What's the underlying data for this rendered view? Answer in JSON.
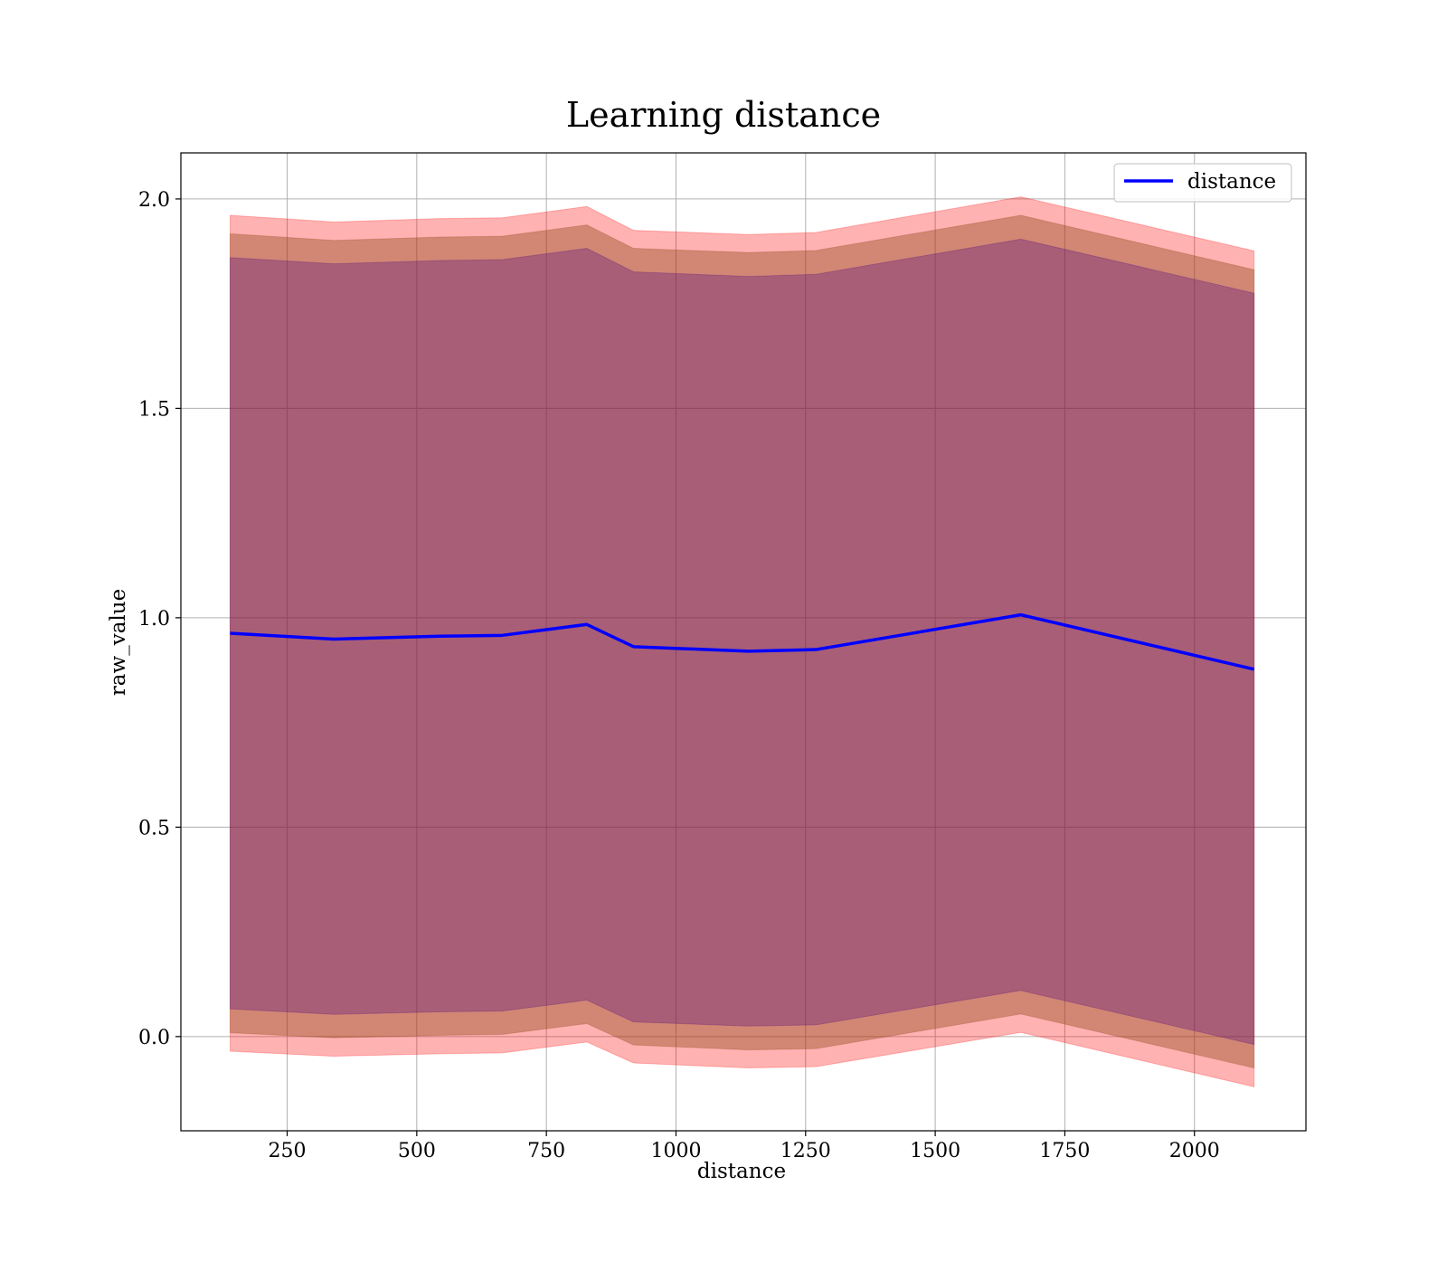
{
  "chart_data": {
    "type": "area",
    "title": "Learning distance",
    "xlabel": "distance",
    "ylabel": "raw_value",
    "xlim": [
      45,
      2215
    ],
    "ylim": [
      -0.225,
      2.11
    ],
    "xticks": [
      250,
      500,
      750,
      1000,
      1250,
      1500,
      1750,
      2000
    ],
    "yticks": [
      0.0,
      0.5,
      1.0,
      1.5,
      2.0
    ],
    "xtick_labels": [
      "250",
      "500",
      "750",
      "1000",
      "1250",
      "1500",
      "1750",
      "2000"
    ],
    "ytick_labels": [
      "0.0",
      "0.5",
      "1.0",
      "1.5",
      "2.0"
    ],
    "grid": true,
    "legend_position": "top-right",
    "x": [
      140,
      340,
      545,
      665,
      828,
      918,
      1140,
      1270,
      1665,
      2115
    ],
    "series": [
      {
        "name": "distance",
        "color": "#0000ff",
        "values": [
          0.963,
          0.949,
          0.956,
          0.958,
          0.984,
          0.931,
          0.92,
          0.924,
          1.007,
          0.877
        ]
      }
    ],
    "bands": [
      {
        "color": "#ff0000",
        "opacity": 0.3,
        "upper": [
          1.961,
          1.945,
          1.953,
          1.955,
          1.982,
          1.925,
          1.915,
          1.92,
          2.005,
          1.876
        ],
        "lower": [
          -0.035,
          -0.047,
          -0.041,
          -0.039,
          -0.013,
          -0.063,
          -0.075,
          -0.072,
          0.01,
          -0.12
        ]
      },
      {
        "color": "#8b4513",
        "opacity": 0.4,
        "upper": [
          1.917,
          1.901,
          1.909,
          1.911,
          1.938,
          1.882,
          1.872,
          1.877,
          1.961,
          1.831
        ],
        "lower": [
          0.009,
          -0.003,
          0.003,
          0.005,
          0.031,
          -0.02,
          -0.032,
          -0.029,
          0.054,
          -0.075
        ]
      },
      {
        "color": "#4b0082",
        "opacity": 0.3,
        "upper": [
          1.86,
          1.845,
          1.853,
          1.855,
          1.882,
          1.826,
          1.815,
          1.82,
          1.904,
          1.775
        ],
        "lower": [
          0.066,
          0.053,
          0.059,
          0.061,
          0.087,
          0.035,
          0.025,
          0.028,
          0.11,
          -0.019
        ]
      }
    ]
  }
}
